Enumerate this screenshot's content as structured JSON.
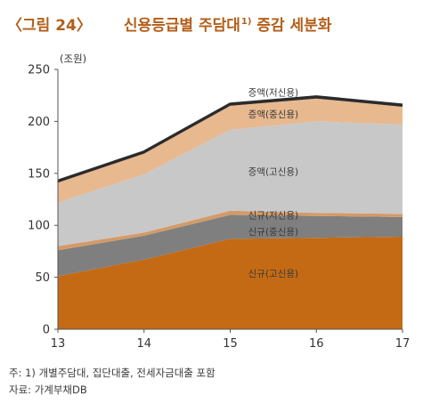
{
  "figure": {
    "number": "〈그림 24〉",
    "title": "신용등급별 주담대",
    "title_sup": "1)",
    "title_suffix": " 증감 세분화"
  },
  "notes": {
    "note1": "주: 1) 개별주담대, 집단대출, 전세자금대출 포함",
    "source": "자료: 가계부채DB"
  },
  "chart_data": {
    "type": "area",
    "stacked": true,
    "unit_label": "(조원)",
    "x": [
      "13",
      "14",
      "15",
      "16",
      "17"
    ],
    "ylim": [
      0,
      250
    ],
    "yticks": [
      0,
      50,
      100,
      150,
      200,
      250
    ],
    "grid": false,
    "series": [
      {
        "name": "신규(고신용)",
        "values": [
          51,
          67,
          87,
          88,
          89
        ],
        "color": "#c46a14"
      },
      {
        "name": "신규(중신용)",
        "values": [
          25,
          23,
          23,
          21,
          19
        ],
        "color": "#7f7f7f"
      },
      {
        "name": "신규(저신용)",
        "values": [
          4,
          3,
          4,
          3,
          3
        ],
        "color": "#d49a67"
      },
      {
        "name": "증액(고신용)",
        "values": [
          42,
          56,
          78,
          88,
          86
        ],
        "color": "#c8c8c8"
      },
      {
        "name": "증액(중신용)",
        "values": [
          19,
          20,
          23,
          22,
          17
        ],
        "color": "#e8b88f"
      },
      {
        "name": "증액(저신용)",
        "values": [
          2,
          2,
          2,
          2,
          2
        ],
        "color": "#2b2b2b"
      }
    ],
    "series_label_positions": [
      {
        "series": "신규(고신용)",
        "x_value": 15.5,
        "y_value": 54
      },
      {
        "series": "신규(중신용)",
        "x_value": 15.5,
        "y_value": 94
      },
      {
        "series": "신규(저신용)",
        "x_value": 15.5,
        "y_value": 110
      },
      {
        "series": "증액(고신용)",
        "x_value": 15.5,
        "y_value": 152
      },
      {
        "series": "증액(중신용)",
        "x_value": 15.5,
        "y_value": 207
      },
      {
        "series": "증액(저신용)",
        "x_value": 15.5,
        "y_value": 228
      }
    ]
  }
}
